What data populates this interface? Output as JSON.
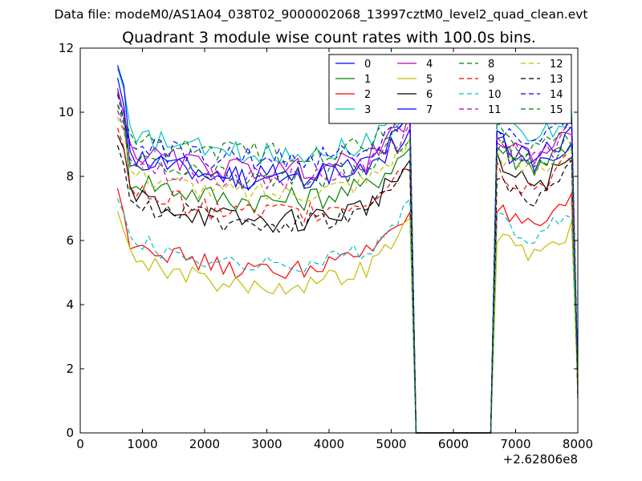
{
  "chart_data": {
    "type": "line",
    "suptitle": "Data file: modeM0/AS1A04_038T02_9000002068_13997cztM0_level2_quad_clean.evt",
    "title": "Quadrant 3 module wise count rates with 100.0s bins.",
    "xlabel": "",
    "ylabel": "",
    "x_offset_label": "+2.62806e8",
    "xlim": [
      0,
      8000
    ],
    "ylim": [
      0,
      12
    ],
    "xticks": [
      0,
      1000,
      2000,
      3000,
      4000,
      5000,
      6000,
      7000,
      8000
    ],
    "yticks": [
      0,
      2,
      4,
      6,
      8,
      10,
      12
    ],
    "legend_position": "top-right",
    "legend_columns": 4,
    "x": [
      600,
      700,
      800,
      900,
      1000,
      1100,
      1200,
      1300,
      1400,
      1500,
      1600,
      1700,
      1800,
      1900,
      2000,
      2100,
      2200,
      2300,
      2400,
      2500,
      2600,
      2700,
      2800,
      2900,
      3000,
      3100,
      3200,
      3300,
      3400,
      3500,
      3600,
      3700,
      3800,
      3900,
      4000,
      4100,
      4200,
      4300,
      4400,
      4500,
      4600,
      4700,
      4800,
      4900,
      5000,
      5100,
      5200,
      5300,
      5400,
      5500,
      5600,
      5700,
      5800,
      5900,
      6000,
      6100,
      6200,
      6300,
      6400,
      6500,
      6600,
      6700,
      6800,
      6900,
      7000,
      7100,
      7200,
      7300,
      7400,
      7500,
      7600,
      7700,
      7800,
      7900,
      8000
    ],
    "series": [
      {
        "name": "0",
        "color": "#0000ff",
        "dash": "solid",
        "base": 8.7,
        "dip": 0.25,
        "amp": 0.42,
        "hi": 9.2,
        "start": 10.9,
        "offset": 0.0
      },
      {
        "name": "1",
        "color": "#008000",
        "dash": "solid",
        "base": 8.1,
        "dip": 0.25,
        "amp": 0.4,
        "hi": 9.0,
        "start": 10.5,
        "offset": -0.1
      },
      {
        "name": "2",
        "color": "#ff0000",
        "dash": "solid",
        "base": 6.1,
        "dip": 0.35,
        "amp": 0.3,
        "hi": 7.0,
        "start": 7.55,
        "offset": 0.0
      },
      {
        "name": "3",
        "color": "#00bfbf",
        "dash": "solid",
        "base": 9.2,
        "dip": 0.2,
        "amp": 0.35,
        "hi": 9.8,
        "start": 11.3,
        "offset": 0.1
      },
      {
        "name": "4",
        "color": "#bf00bf",
        "dash": "solid",
        "base": 8.8,
        "dip": 0.2,
        "amp": 0.35,
        "hi": 9.3,
        "start": 10.7,
        "offset": 0.0
      },
      {
        "name": "5",
        "color": "#bfbf00",
        "dash": "solid",
        "base": 5.6,
        "dip": 0.35,
        "amp": 0.3,
        "hi": 6.2,
        "start": 6.9,
        "offset": 0.0
      },
      {
        "name": "6",
        "color": "#000000",
        "dash": "solid",
        "base": 7.5,
        "dip": 0.3,
        "amp": 0.38,
        "hi": 8.4,
        "start": 9.3,
        "offset": 0.0
      },
      {
        "name": "7",
        "color": "#0000ff",
        "dash": "solid",
        "base": 8.6,
        "dip": 0.2,
        "amp": 0.4,
        "hi": 9.1,
        "start": 11.5,
        "offset": 0.0
      },
      {
        "name": "8",
        "color": "#008000",
        "dash": "dashed",
        "base": 9.0,
        "dip": 0.15,
        "amp": 0.38,
        "hi": 9.5,
        "start": 10.3,
        "offset": 0.2
      },
      {
        "name": "9",
        "color": "#ff0000",
        "dash": "dashed",
        "base": 7.6,
        "dip": 0.25,
        "amp": 0.38,
        "hi": 8.3,
        "start": 9.6,
        "offset": 0.0
      },
      {
        "name": "10",
        "color": "#00bfbf",
        "dash": "dashed",
        "base": 6.1,
        "dip": 0.3,
        "amp": 0.3,
        "hi": 6.8,
        "start": 7.4,
        "offset": 0.0
      },
      {
        "name": "11",
        "color": "#bf00bf",
        "dash": "dashed",
        "base": 8.5,
        "dip": 0.2,
        "amp": 0.38,
        "hi": 9.2,
        "start": 10.2,
        "offset": 0.0
      },
      {
        "name": "12",
        "color": "#bfbf00",
        "dash": "dashed",
        "base": 8.2,
        "dip": 0.25,
        "amp": 0.35,
        "hi": 8.8,
        "start": 10.0,
        "offset": 0.0
      },
      {
        "name": "13",
        "color": "#000000",
        "dash": "dashed",
        "base": 7.3,
        "dip": 0.25,
        "amp": 0.35,
        "hi": 8.0,
        "start": 8.8,
        "offset": 0.0
      },
      {
        "name": "14",
        "color": "#0000ff",
        "dash": "dashed",
        "base": 8.9,
        "dip": 0.15,
        "amp": 0.38,
        "hi": 9.6,
        "start": 10.4,
        "offset": 0.1
      },
      {
        "name": "15",
        "color": "#008000",
        "dash": "dashed",
        "base": 8.5,
        "dip": 0.2,
        "amp": 0.38,
        "hi": 9.0,
        "start": 10.1,
        "offset": 0.0
      }
    ],
    "gap": {
      "x_from": 5400,
      "x_to": 6600,
      "value": 0
    },
    "end_value": 1.0
  }
}
